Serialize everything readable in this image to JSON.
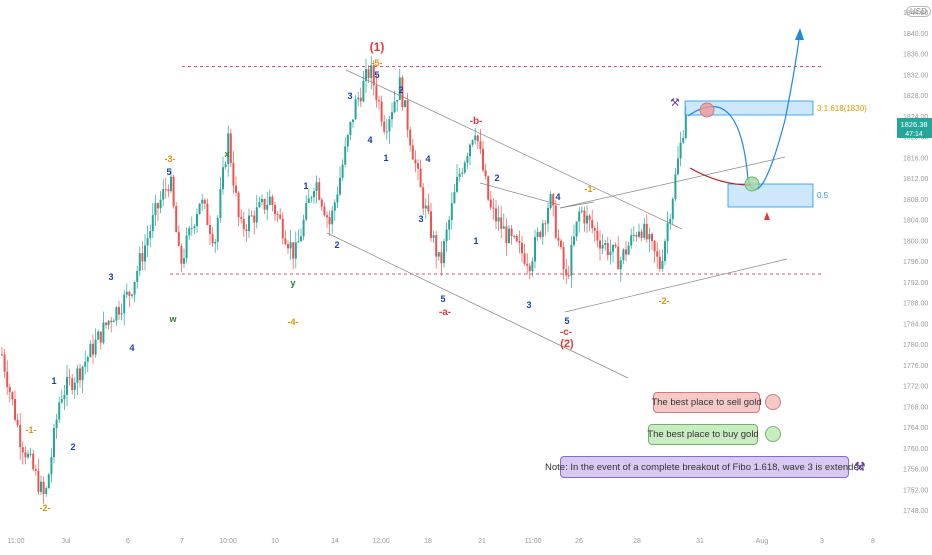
{
  "chart_data": {
    "type": "candlestick",
    "currency": "USD",
    "y_axis": {
      "ticks": [
        "1844.00",
        "1840.00",
        "1836.00",
        "1832.00",
        "1828.00",
        "1824.00",
        "1820.00",
        "1816.00",
        "1812.00",
        "1808.00",
        "1804.00",
        "1800.00",
        "1796.00",
        "1792.00",
        "1788.00",
        "1784.00",
        "1780.00",
        "1776.00",
        "1772.00",
        "1768.00",
        "1764.00",
        "1760.00",
        "1756.00",
        "1752.00",
        "1748.00"
      ],
      "range": [
        1748,
        1846
      ]
    },
    "x_axis": {
      "ticks": [
        "11:00",
        "Jul",
        "6",
        "7",
        "10:00",
        "10",
        "14",
        "12:00",
        "18",
        "21",
        "11:00",
        "26",
        "28",
        "31",
        "Aug",
        "3",
        "8"
      ]
    },
    "price_badge": {
      "value": "1826.38",
      "countdown": "47:14",
      "color": "#26a69a"
    },
    "fib_levels": [
      {
        "label": "3:1.618(1830)",
        "price": 1830,
        "color": "#e69400"
      },
      {
        "label": "0.5",
        "price": 1812,
        "color": "#2196f3"
      }
    ],
    "horizontal_levels": [
      1833.5,
      1793.5
    ],
    "wave_labels": [
      {
        "text": "(1)",
        "color": "#e53935"
      },
      {
        "text": "-5-",
        "color": "#e69400"
      },
      {
        "text": "5",
        "color": "#1a3faa"
      },
      {
        "text": "3",
        "color": "#1a3faa"
      },
      {
        "text": "2",
        "color": "#1a3faa"
      },
      {
        "text": "4",
        "color": "#1a3faa"
      },
      {
        "text": "1",
        "color": "#1a3faa"
      },
      {
        "text": "-b-",
        "color": "#e53935"
      },
      {
        "text": "4",
        "color": "#1a3faa"
      },
      {
        "text": "3",
        "color": "#1a3faa"
      },
      {
        "text": "5",
        "color": "#1a3faa"
      },
      {
        "text": "-a-",
        "color": "#e53935"
      },
      {
        "text": "2",
        "color": "#1a3faa"
      },
      {
        "text": "1",
        "color": "#1a3faa"
      },
      {
        "text": "4",
        "color": "#1a3faa"
      },
      {
        "text": "-1-",
        "color": "#e69400"
      },
      {
        "text": "3",
        "color": "#1a3faa"
      },
      {
        "text": "5",
        "color": "#1a3faa"
      },
      {
        "text": "-c-",
        "color": "#e53935"
      },
      {
        "text": "(2)",
        "color": "#e53935"
      },
      {
        "text": "-2-",
        "color": "#e69400"
      },
      {
        "text": "-3-",
        "color": "#e69400"
      },
      {
        "text": "5",
        "color": "#1a3faa"
      },
      {
        "text": "x",
        "color": "#2e7d32"
      },
      {
        "text": "1",
        "color": "#1a3faa"
      },
      {
        "text": "2",
        "color": "#1a3faa"
      },
      {
        "text": "y",
        "color": "#2e7d32"
      },
      {
        "text": "-4-",
        "color": "#e69400"
      },
      {
        "text": "w",
        "color": "#2e7d32"
      },
      {
        "text": "3",
        "color": "#1a3faa"
      },
      {
        "text": "4",
        "color": "#1a3faa"
      },
      {
        "text": "1",
        "color": "#1a3faa"
      },
      {
        "text": "2",
        "color": "#1a3faa"
      },
      {
        "text": "-1-",
        "color": "#e69400"
      },
      {
        "text": "-2-",
        "color": "#e69400"
      }
    ],
    "candle_colors": {
      "up": "#26a69a",
      "down": "#ef5350"
    }
  },
  "annotations": {
    "sell_note": "The best place to sell gold",
    "buy_note": "The best place to buy gold",
    "extended_note": "Note: In the event of a complete breakout of Fibo 1.618, wave 3 is extended",
    "projection_labels": [
      "A"
    ]
  }
}
